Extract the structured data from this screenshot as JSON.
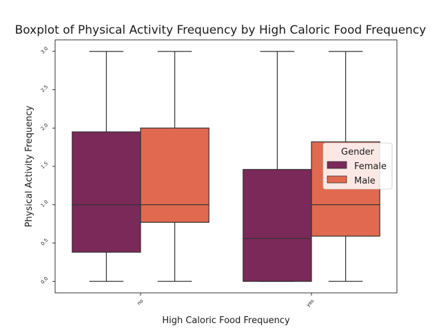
{
  "chart_data": {
    "type": "box",
    "title": "Boxplot of Physical Activity Frequency by High Caloric Food Frequency",
    "xlabel": "High Caloric Food Frequency",
    "ylabel": "Physical Activity Frequency",
    "categories": [
      "no",
      "yes"
    ],
    "ylim": [
      -0.15,
      3.15
    ],
    "yticks": [
      "0.0",
      "0.5",
      "1.0",
      "1.5",
      "2.0",
      "2.5",
      "3.0"
    ],
    "grid": false,
    "legend": {
      "title": "Gender",
      "placement": "center-right"
    },
    "series": [
      {
        "name": "Female",
        "color": "#7a2958",
        "boxes": [
          {
            "category": "no",
            "min": 0.0,
            "q1": 0.38,
            "median": 1.0,
            "q3": 1.95,
            "max": 3.0
          },
          {
            "category": "yes",
            "min": 0.0,
            "q1": 0.0,
            "median": 0.56,
            "q3": 1.46,
            "max": 3.0
          }
        ]
      },
      {
        "name": "Male",
        "color": "#e0694f",
        "boxes": [
          {
            "category": "no",
            "min": 0.0,
            "q1": 0.77,
            "median": 1.0,
            "q3": 2.0,
            "max": 3.0
          },
          {
            "category": "yes",
            "min": 0.0,
            "q1": 0.59,
            "median": 1.0,
            "q3": 1.82,
            "max": 3.0
          }
        ]
      }
    ]
  }
}
